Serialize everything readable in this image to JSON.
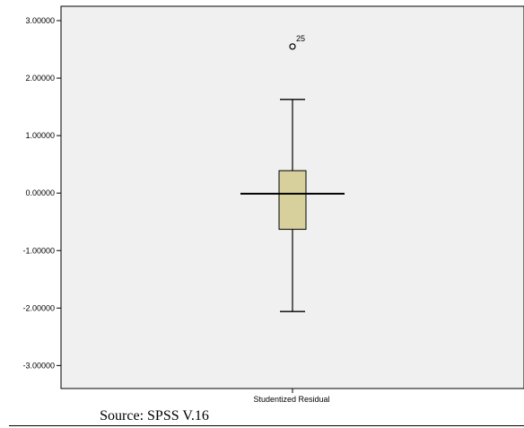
{
  "chart_data": {
    "type": "boxplot",
    "categories": [
      "Studentized Residual"
    ],
    "ylim": [
      -3.4,
      3.25
    ],
    "yticks": [
      -3,
      -2,
      -1,
      0,
      1,
      2,
      3
    ],
    "ytick_labels": [
      "-3.00000",
      "-2.00000",
      "-1.00000",
      "0.00000",
      "1.00000",
      "2.00000",
      "3.00000"
    ],
    "series": [
      {
        "whisker_low": -2.06,
        "q1": -0.63,
        "median": -0.01,
        "q3": 0.39,
        "whisker_high": 1.63,
        "outliers": [
          {
            "label": "25",
            "value": 2.55
          }
        ]
      }
    ],
    "grid": false,
    "colors": {
      "box_fill": "#d8d09c",
      "plot_background": "#f0f0f0",
      "stroke": "#000000"
    }
  },
  "caption": "Source: SPSS V.16"
}
